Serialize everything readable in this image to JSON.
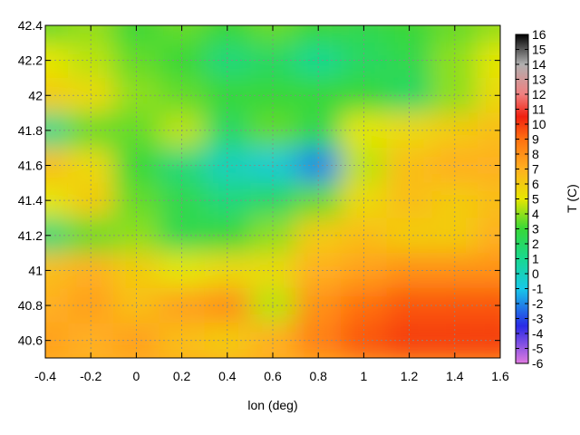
{
  "chart_data": {
    "type": "heatmap",
    "title": "",
    "xlabel": "lon (deg)",
    "ylabel": "",
    "colorbar_label": "T (C)",
    "xlim": [
      -0.4,
      1.6
    ],
    "ylim": [
      40.5,
      42.4
    ],
    "xticks": [
      {
        "value": -0.4,
        "label": "-0.4"
      },
      {
        "value": -0.2,
        "label": "-0.2"
      },
      {
        "value": 0,
        "label": "0"
      },
      {
        "value": 0.2,
        "label": "0.2"
      },
      {
        "value": 0.4,
        "label": "0.4"
      },
      {
        "value": 0.6,
        "label": "0.6"
      },
      {
        "value": 0.8,
        "label": "0.8"
      },
      {
        "value": 1,
        "label": "1"
      },
      {
        "value": 1.2,
        "label": "1.2"
      },
      {
        "value": 1.4,
        "label": "1.4"
      },
      {
        "value": 1.6,
        "label": "1.6"
      }
    ],
    "yticks": [
      {
        "value": 40.6,
        "label": "40.6"
      },
      {
        "value": 40.8,
        "label": "40.8"
      },
      {
        "value": 41,
        "label": "41"
      },
      {
        "value": 41.2,
        "label": "41.2"
      },
      {
        "value": 41.4,
        "label": "41.4"
      },
      {
        "value": 41.6,
        "label": "41.6"
      },
      {
        "value": 41.8,
        "label": "41.8"
      },
      {
        "value": 42,
        "label": "42"
      },
      {
        "value": 42.2,
        "label": "42.2"
      },
      {
        "value": 42.4,
        "label": "42.4"
      }
    ],
    "colorbar_range": [
      -6,
      16
    ],
    "colorbar_ticks": [
      "-6",
      "-5",
      "-4",
      "-3",
      "-2",
      "-1",
      "0",
      "1",
      "2",
      "3",
      "4",
      "5",
      "6",
      "7",
      "8",
      "9",
      "10",
      "11",
      "12",
      "13",
      "14",
      "15",
      "16"
    ],
    "colormap": [
      {
        "value": -6,
        "color": "#e07ae0"
      },
      {
        "value": -3.5,
        "color": "#2a2ae6"
      },
      {
        "value": -1,
        "color": "#18c8e8"
      },
      {
        "value": 1,
        "color": "#18d890"
      },
      {
        "value": 3,
        "color": "#38d838"
      },
      {
        "value": 5,
        "color": "#e6e600"
      },
      {
        "value": 7,
        "color": "#ffb020"
      },
      {
        "value": 9,
        "color": "#ff7010"
      },
      {
        "value": 10.5,
        "color": "#f02010"
      },
      {
        "value": 12,
        "color": "#f08080"
      },
      {
        "value": 14,
        "color": "#b0b0b0"
      },
      {
        "value": 16,
        "color": "#000000"
      }
    ],
    "grid": true,
    "temperature_grid": {
      "lon": [
        -0.4,
        -0.2,
        0.0,
        0.2,
        0.4,
        0.6,
        0.8,
        1.0,
        1.2,
        1.4,
        1.6
      ],
      "lat": [
        42.4,
        42.2,
        42.0,
        41.8,
        41.6,
        41.4,
        41.2,
        41.0,
        40.8,
        40.6
      ],
      "values": [
        [
          3.5,
          4.0,
          3.0,
          3.5,
          3.0,
          3.5,
          3.0,
          2.5,
          3.0,
          3.5,
          4.0
        ],
        [
          5.0,
          4.5,
          3.5,
          3.0,
          1.5,
          2.0,
          1.0,
          2.0,
          2.5,
          4.0,
          5.0
        ],
        [
          6.0,
          5.5,
          4.0,
          3.5,
          3.0,
          3.0,
          3.0,
          3.0,
          2.0,
          4.0,
          5.5
        ],
        [
          1.0,
          3.5,
          3.5,
          4.5,
          2.0,
          3.5,
          2.5,
          5.0,
          5.5,
          6.0,
          6.5
        ],
        [
          6.5,
          5.5,
          3.0,
          1.5,
          0.0,
          -0.5,
          -2.0,
          4.5,
          6.5,
          7.0,
          7.0
        ],
        [
          5.0,
          6.0,
          3.5,
          2.5,
          1.5,
          2.0,
          3.5,
          5.5,
          6.5,
          6.0,
          6.5
        ],
        [
          1.5,
          3.5,
          4.0,
          2.5,
          3.0,
          4.0,
          6.0,
          6.5,
          6.0,
          6.0,
          7.0
        ],
        [
          6.5,
          7.0,
          6.0,
          5.0,
          5.5,
          5.5,
          7.0,
          7.5,
          8.0,
          8.0,
          8.0
        ],
        [
          7.0,
          7.5,
          6.5,
          7.5,
          8.0,
          4.5,
          8.0,
          9.0,
          9.5,
          9.5,
          9.5
        ],
        [
          7.5,
          7.0,
          7.5,
          6.5,
          6.0,
          7.0,
          8.5,
          9.5,
          10.0,
          10.0,
          10.0
        ]
      ]
    }
  }
}
